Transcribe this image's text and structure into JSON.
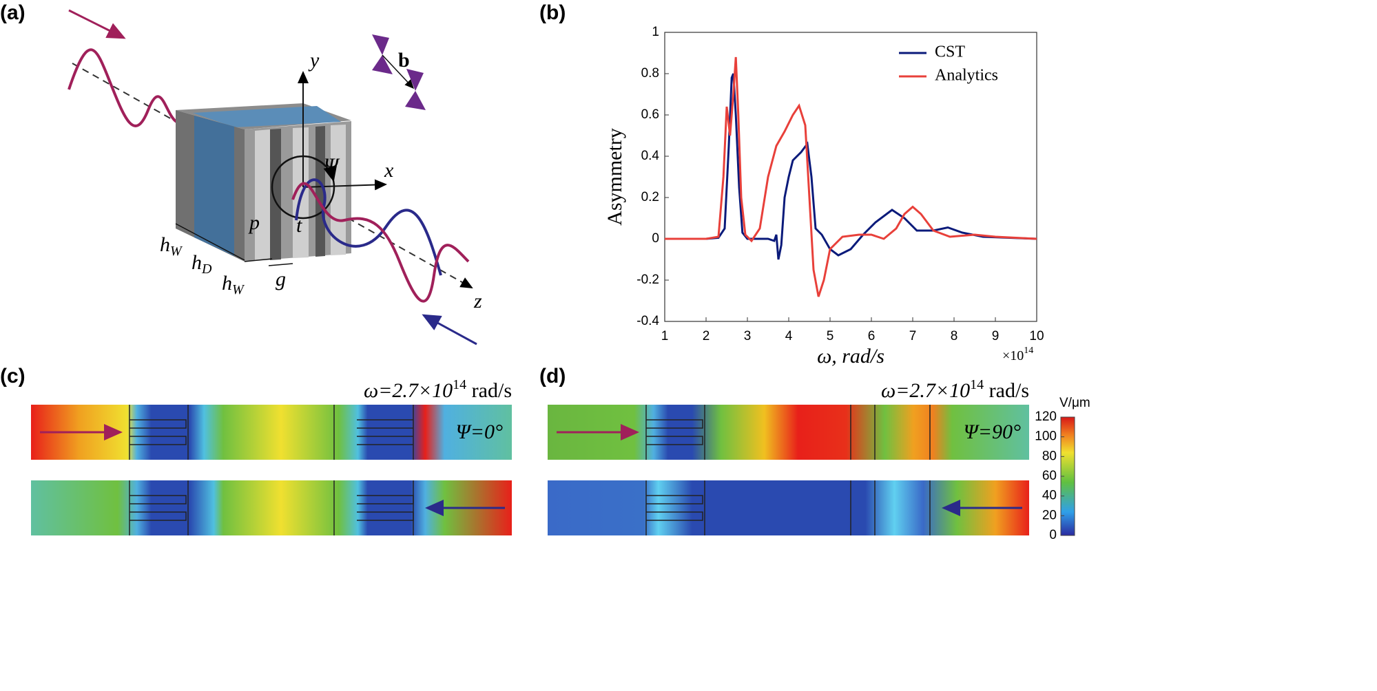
{
  "panel_labels": [
    "(a)",
    "(b)",
    "(c)",
    "(d)"
  ],
  "diagram": {
    "axes": [
      "y",
      "x",
      "z"
    ],
    "angle": "Ψ",
    "vector": "b",
    "dims": [
      "p",
      "t",
      "g"
    ],
    "heights": [
      {
        "main": "h",
        "sub": "W"
      },
      {
        "main": "h",
        "sub": "D"
      },
      {
        "main": "h",
        "sub": "W"
      }
    ]
  },
  "chart_data": {
    "type": "line",
    "xlabel": "ω, rad/s",
    "ylabel": "Asymmetry",
    "x_multiplier": {
      "base": "×10",
      "exp": "14"
    },
    "xlim": [
      1,
      10
    ],
    "xticks": [
      1,
      2,
      3,
      4,
      5,
      6,
      7,
      8,
      9,
      10
    ],
    "ylim": [
      -0.4,
      1
    ],
    "yticks": [
      -0.4,
      -0.2,
      0,
      0.2,
      0.4,
      0.6,
      0.8,
      1
    ],
    "legend": "top-right",
    "series": [
      {
        "name": "CST",
        "color": "#0a1a7a",
        "x": [
          1,
          2,
          2.3,
          2.45,
          2.55,
          2.62,
          2.66,
          2.72,
          2.8,
          2.88,
          3.0,
          3.5,
          3.65,
          3.7,
          3.75,
          3.82,
          3.9,
          4.0,
          4.1,
          4.3,
          4.45,
          4.55,
          4.65,
          4.8,
          5.0,
          5.2,
          5.5,
          5.8,
          6.1,
          6.5,
          6.8,
          7.1,
          7.5,
          7.85,
          8.2,
          8.7,
          10
        ],
        "values": [
          0,
          0,
          0.005,
          0.05,
          0.45,
          0.78,
          0.8,
          0.6,
          0.25,
          0.03,
          0,
          0,
          -0.01,
          0.02,
          -0.1,
          -0.03,
          0.2,
          0.3,
          0.38,
          0.42,
          0.46,
          0.3,
          0.05,
          0.02,
          -0.05,
          -0.08,
          -0.05,
          0.02,
          0.08,
          0.14,
          0.1,
          0.04,
          0.04,
          0.055,
          0.03,
          0.01,
          0
        ]
      },
      {
        "name": "Analytics",
        "color": "#e8403a",
        "x": [
          1,
          2,
          2.3,
          2.42,
          2.5,
          2.58,
          2.66,
          2.72,
          2.78,
          2.85,
          2.95,
          3.1,
          3.3,
          3.5,
          3.7,
          3.9,
          4.1,
          4.25,
          4.4,
          4.5,
          4.6,
          4.72,
          4.85,
          5.0,
          5.3,
          5.7,
          6.0,
          6.3,
          6.6,
          6.8,
          7.0,
          7.2,
          7.5,
          7.9,
          8.5,
          9.0,
          10
        ],
        "values": [
          0,
          0,
          0.01,
          0.3,
          0.64,
          0.5,
          0.7,
          0.88,
          0.6,
          0.2,
          0.02,
          -0.01,
          0.05,
          0.3,
          0.45,
          0.52,
          0.6,
          0.645,
          0.55,
          0.2,
          -0.15,
          -0.28,
          -0.2,
          -0.05,
          0.01,
          0.02,
          0.02,
          0,
          0.05,
          0.12,
          0.155,
          0.12,
          0.04,
          0.01,
          0.02,
          0.01,
          0
        ]
      }
    ]
  },
  "fields": [
    {
      "frequency": {
        "pre": "ω=2.7×10",
        "exp": "14",
        "post": " rad/s"
      },
      "angle": "Ψ=0°"
    },
    {
      "frequency": {
        "pre": "ω=2.7×10",
        "exp": "14",
        "post": " rad/s"
      },
      "angle": "Ψ=90°"
    }
  ],
  "colorbar": {
    "label": "V/μm",
    "lim": [
      0,
      120
    ],
    "ticks": [
      0,
      20,
      40,
      60,
      80,
      100,
      120
    ]
  }
}
